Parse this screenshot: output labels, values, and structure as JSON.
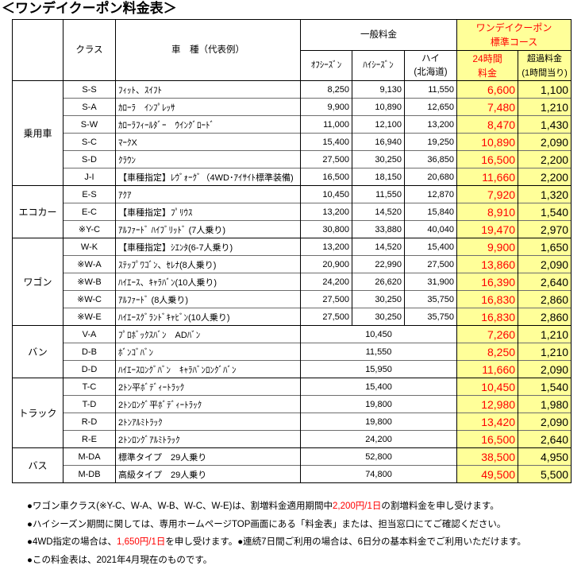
{
  "title": "＜ワンデイクーポン料金表＞",
  "colors": {
    "coupon_background": "#ffff99",
    "highlight_red": "#ff0000"
  },
  "header": {
    "class": "クラス",
    "car_model": "車　種（代表例）",
    "general_rate": "一般料金",
    "off_season": "ｵﾌｼｰｽﾞﾝ",
    "high_season": "ﾊｲｼｰｽﾞﾝ",
    "high_hokkaido": [
      "ハイ",
      "(北海道)"
    ],
    "one_day_coupon": [
      "ワンデイクーポン",
      "標準コース"
    ],
    "rate_24h": [
      "24時間",
      "料金"
    ],
    "excess_rate": [
      "超過料金",
      "(1時間当り)"
    ]
  },
  "groups": [
    {
      "category": "乗用車",
      "rows": [
        {
          "class": "S-S",
          "car": "ﾌｨｯﾄ、ｽｲﾌﾄ",
          "off_season": "8,250",
          "high_season": "9,130",
          "high_hokkaido": "11,550",
          "coupon_24h": "6,600",
          "excess_per_hour": "1,100"
        },
        {
          "class": "S-A",
          "car": "ｶﾛｰﾗ　ｲﾝﾌﾟﾚｯｻ",
          "off_season": "9,900",
          "high_season": "10,890",
          "high_hokkaido": "12,650",
          "coupon_24h": "7,480",
          "excess_per_hour": "1,210"
        },
        {
          "class": "S-W",
          "car": "ｶﾛｰﾗﾌｨｰﾙﾀﾞｰ　ｳｲﾝｸﾞﾛｰﾄﾞ",
          "off_season": "11,000",
          "high_season": "12,100",
          "high_hokkaido": "13,200",
          "coupon_24h": "8,470",
          "excess_per_hour": "1,430"
        },
        {
          "class": "S-C",
          "car": "ﾏｰｸX",
          "off_season": "15,400",
          "high_season": "16,940",
          "high_hokkaido": "19,250",
          "coupon_24h": "10,890",
          "excess_per_hour": "2,090"
        },
        {
          "class": "S-D",
          "car": "ｸﾗｳﾝ",
          "off_season": "27,500",
          "high_season": "30,250",
          "high_hokkaido": "36,850",
          "coupon_24h": "16,500",
          "excess_per_hour": "2,200"
        },
        {
          "class": "J-I",
          "car": "【車種指定】ﾚｳﾞｫｰｸﾞ（4WD･ｱｲｻｲﾄ標準装備)",
          "off_season": "16,500",
          "high_season": "18,150",
          "high_hokkaido": "20,680",
          "coupon_24h": "11,660",
          "excess_per_hour": "2,200"
        }
      ]
    },
    {
      "category": "エコカー",
      "rows": [
        {
          "class": "E-S",
          "car": "ｱｸｱ",
          "off_season": "10,450",
          "high_season": "11,550",
          "high_hokkaido": "12,870",
          "coupon_24h": "7,920",
          "excess_per_hour": "1,320"
        },
        {
          "class": "E-C",
          "car": "【車種指定】ﾌﾟﾘｳｽ",
          "off_season": "13,200",
          "high_season": "14,520",
          "high_hokkaido": "15,840",
          "coupon_24h": "8,910",
          "excess_per_hour": "1,540"
        },
        {
          "class": "※Y-C",
          "car": "ｱﾙﾌｧｰﾄﾞ ﾊｲﾌﾞﾘｯﾄﾞ (7人乗り)",
          "off_season": "30,800",
          "high_season": "33,880",
          "high_hokkaido": "40,040",
          "coupon_24h": "19,470",
          "excess_per_hour": "2,970"
        }
      ]
    },
    {
      "category": "ワゴン",
      "rows": [
        {
          "class": "W-K",
          "car": "【車種指定】ｼｴﾝﾀ(6-7人乗り)",
          "off_season": "13,200",
          "high_season": "14,520",
          "high_hokkaido": "15,400",
          "coupon_24h": "9,900",
          "excess_per_hour": "1,650"
        },
        {
          "class": "※W-A",
          "car": "ｽﾃｯﾌﾟﾜｺﾞﾝ、ｾﾚﾅ(8人乗り)",
          "off_season": "20,900",
          "high_season": "22,990",
          "high_hokkaido": "27,500",
          "coupon_24h": "13,860",
          "excess_per_hour": "2,090"
        },
        {
          "class": "※W-B",
          "car": "ﾊｲｴｰｽ、ｷｬﾗﾊﾞﾝ(10人乗り)",
          "off_season": "24,200",
          "high_season": "26,620",
          "high_hokkaido": "31,900",
          "coupon_24h": "16,390",
          "excess_per_hour": "2,640"
        },
        {
          "class": "※W-C",
          "car": "ｱﾙﾌｧｰﾄﾞ (8人乗り)",
          "off_season": "27,500",
          "high_season": "30,250",
          "high_hokkaido": "35,750",
          "coupon_24h": "16,830",
          "excess_per_hour": "2,860"
        },
        {
          "class": "※W-E",
          "car": "ﾊｲｴｰｽｸﾞﾗﾝﾄﾞｷｬﾋﾞﾝ(10人乗り)",
          "off_season": "27,500",
          "high_season": "30,250",
          "high_hokkaido": "35,750",
          "coupon_24h": "16,830",
          "excess_per_hour": "2,860"
        }
      ]
    },
    {
      "category": "バン",
      "rows": [
        {
          "class": "V-A",
          "car": "ﾌﾟﾛﾎﾞｯｸｽﾊﾞﾝ　ADﾊﾞﾝ",
          "general": "10,450",
          "coupon_24h": "7,260",
          "excess_per_hour": "1,210"
        },
        {
          "class": "D-B",
          "car": "ﾎﾞﾝｺﾞﾊﾞﾝ",
          "general": "11,550",
          "coupon_24h": "8,250",
          "excess_per_hour": "1,210"
        },
        {
          "class": "D-D",
          "car": "ﾊｲｴｰｽﾛﾝｸﾞﾊﾞﾝ　ｷｬﾗﾊﾞﾝﾛﾝｸﾞﾊﾞﾝ",
          "general": "15,950",
          "coupon_24h": "11,660",
          "excess_per_hour": "2,090"
        }
      ]
    },
    {
      "category": "トラック",
      "rows": [
        {
          "class": "T-C",
          "car": "2ﾄﾝ平ﾎﾞﾃﾞｨｰﾄﾗｯｸ",
          "general": "15,400",
          "coupon_24h": "10,450",
          "excess_per_hour": "1,540"
        },
        {
          "class": "T-D",
          "car": "2ﾄﾝﾛﾝｸﾞ平ﾎﾞﾃﾞｨｰﾄﾗｯｸ",
          "general": "19,800",
          "coupon_24h": "12,980",
          "excess_per_hour": "1,980"
        },
        {
          "class": "R-D",
          "car": "2ﾄﾝｱﾙﾐﾄﾗｯｸ",
          "general": "19,800",
          "coupon_24h": "13,420",
          "excess_per_hour": "2,090"
        },
        {
          "class": "R-E",
          "car": "2ﾄﾝﾛﾝｸﾞｱﾙﾐﾄﾗｯｸ",
          "general": "24,200",
          "coupon_24h": "16,500",
          "excess_per_hour": "2,640"
        }
      ]
    },
    {
      "category": "バス",
      "rows": [
        {
          "class": "M-DA",
          "car": "標準タイプ　29人乗り",
          "general": "52,800",
          "coupon_24h": "38,500",
          "excess_per_hour": "4,950"
        },
        {
          "class": "M-DB",
          "car": "高級タイプ　29人乗り",
          "general": "74,800",
          "coupon_24h": "49,500",
          "excess_per_hour": "5,500"
        }
      ]
    }
  ],
  "notes": [
    {
      "parts": [
        {
          "text": "●ワゴン車クラス(※Y-C、W-A、W-B、W-C、W-E)は、割増料金適用期間中"
        },
        {
          "text": "2,200円/1日",
          "color": "#ff0000"
        },
        {
          "text": "の割増料金を申し受けます。"
        }
      ]
    },
    {
      "parts": [
        {
          "text": "●ハイシーズン期間に関しては、専用ホームページTOP画面にある「料金表」または、担当窓口にてご確認ください。"
        }
      ]
    },
    {
      "parts": [
        {
          "text": "●4WD指定の場合は、"
        },
        {
          "text": "1,650円/1日",
          "color": "#ff0000"
        },
        {
          "text": "を申し受けます。●連続7日間ご利用の場合は、6日分の基本料金でご利用いただけます。"
        }
      ]
    },
    {
      "parts": [
        {
          "text": "●この料金表は、2021年4月現在のものです。"
        }
      ]
    }
  ]
}
